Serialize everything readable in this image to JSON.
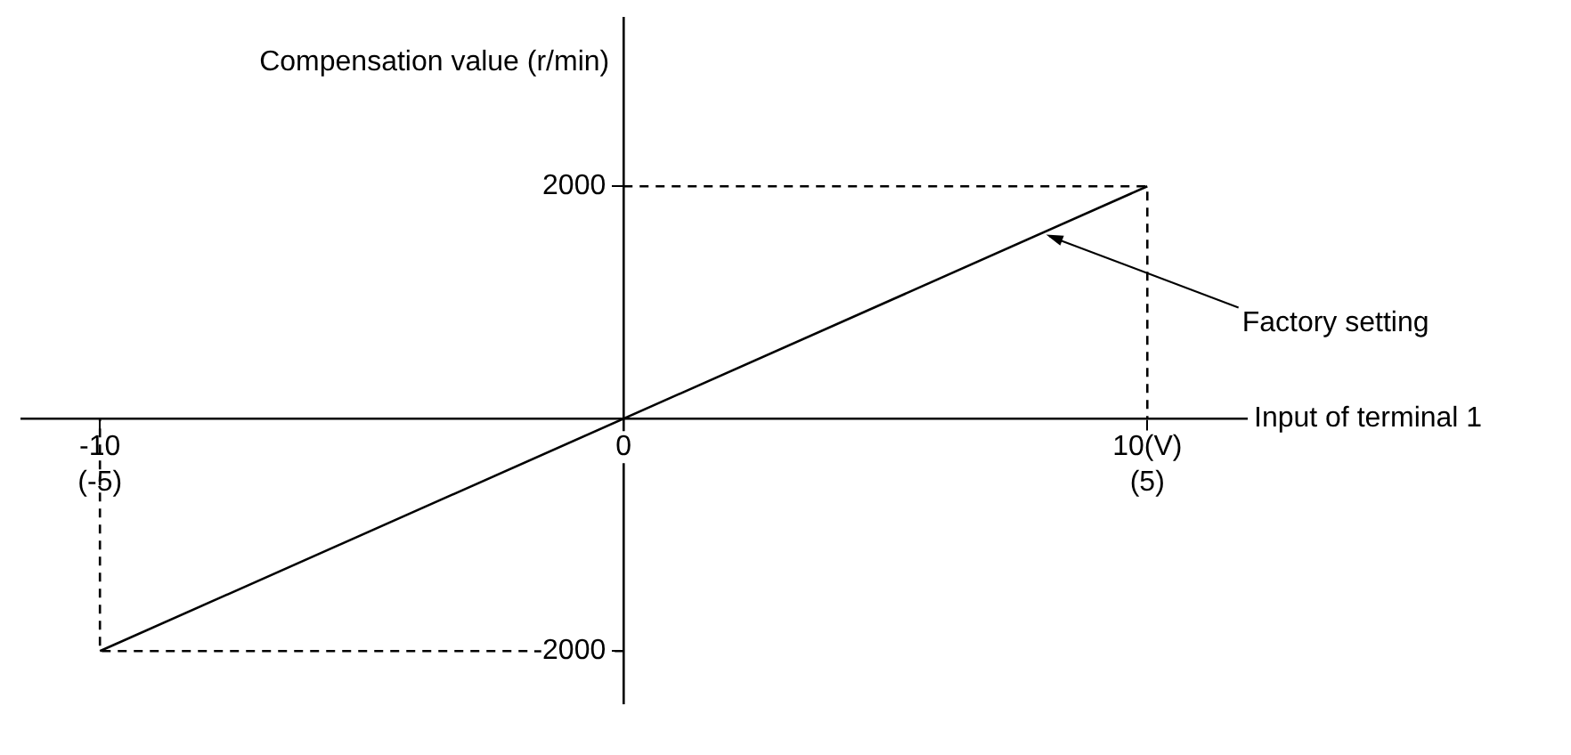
{
  "chart_data": {
    "type": "line",
    "xlabel": "Input of terminal 1",
    "ylabel": "Compensation value (r/min)",
    "xlim": [
      -11.5,
      11.9
    ],
    "ylim": [
      -2450,
      3450
    ],
    "xticks": [
      -10,
      0,
      {
        "value": 10,
        "label": "10(V)"
      }
    ],
    "yticks": [
      {
        "value": -2000,
        "label": "-2000"
      },
      {
        "value": 2000,
        "label": "2000"
      }
    ],
    "series": [
      {
        "x": [
          -10,
          10
        ],
        "values": [
          -2000,
          2000
        ],
        "color": "#000000"
      },
      {
        "x": [
          0,
          10,
          10
        ],
        "values": [
          2000,
          2000,
          0
        ],
        "color": "#000000",
        "line_style": "dashed"
      },
      {
        "x": [
          0,
          -10,
          -10
        ],
        "values": [
          -2000,
          -2000,
          0
        ],
        "color": "#000000",
        "line_style": "dashed"
      }
    ],
    "annotations": [
      {
        "text": "Factory setting",
        "x": 8,
        "y": 1600
      },
      {
        "text": "(-5)",
        "x": -10,
        "y": 0
      },
      {
        "text": "(5)",
        "x": 10,
        "y": 0
      }
    ],
    "grid": false,
    "legend": false,
    "marker": "none",
    "line_style": "solid"
  }
}
